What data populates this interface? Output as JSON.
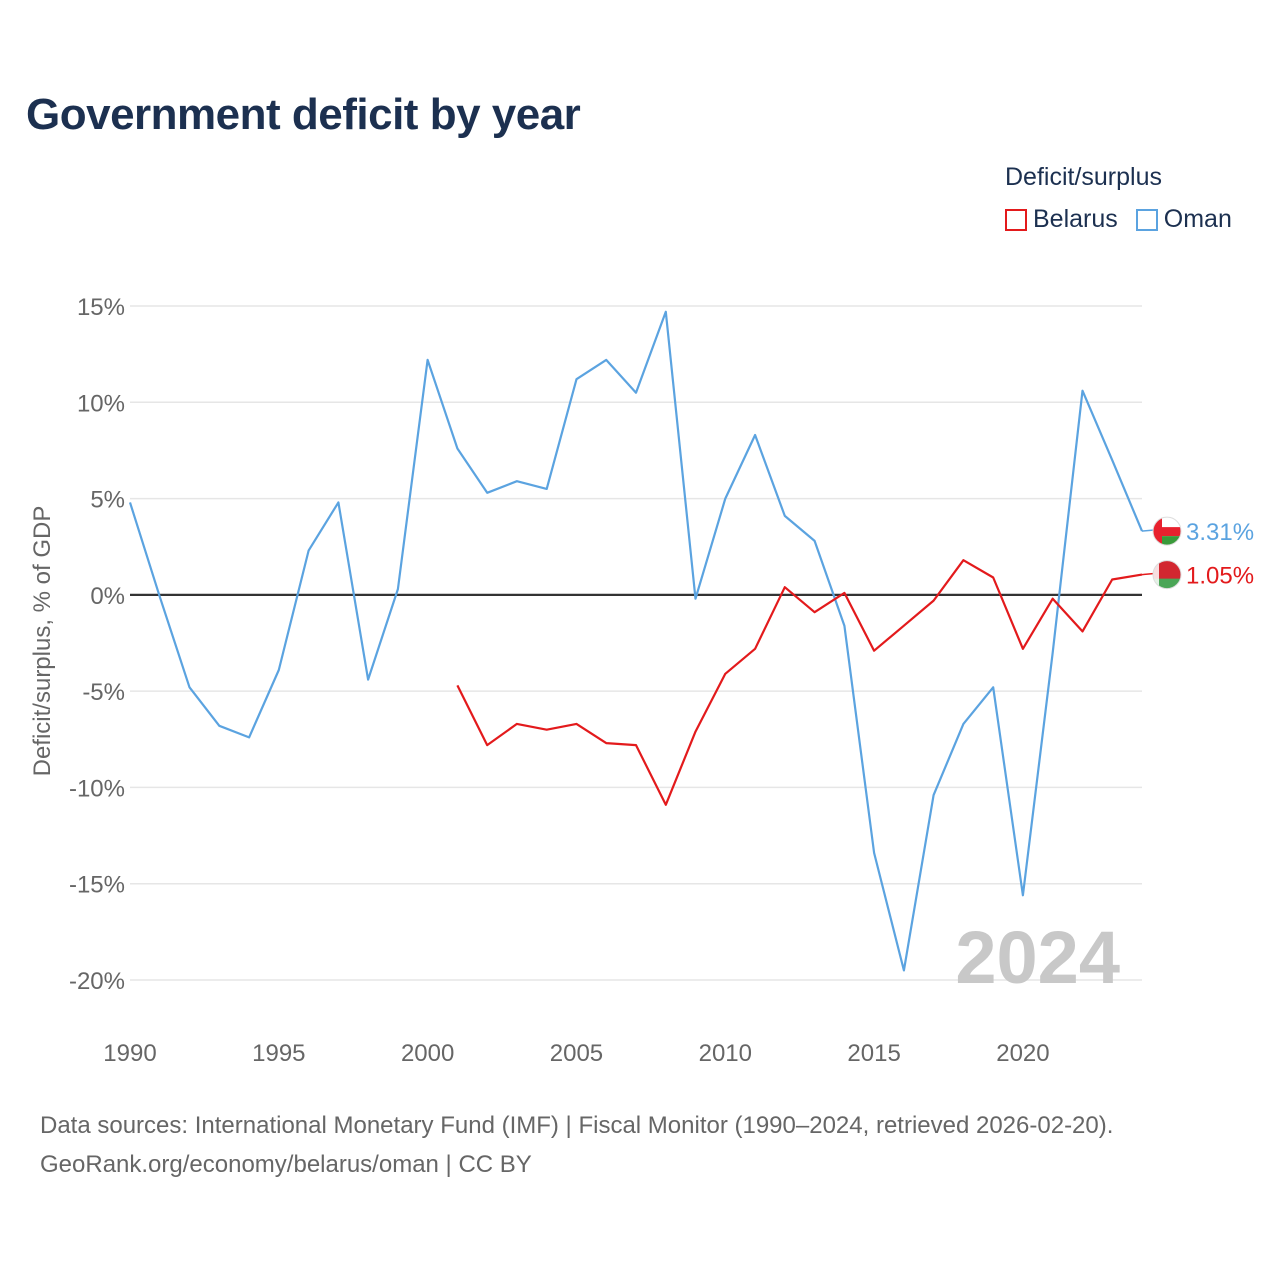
{
  "title": "Government deficit by year",
  "legend": {
    "title": "Deficit/surplus",
    "items": [
      {
        "label": "Belarus",
        "color": "#e31a1c"
      },
      {
        "label": "Oman",
        "color": "#5ba3e0"
      }
    ]
  },
  "footer": {
    "line1": "Data sources: International Monetary Fund (IMF) | Fiscal Monitor (1990–2024, retrieved 2026-02-20).",
    "line2": "GeoRank.org/economy/belarus/oman | CC BY"
  },
  "chart_data": {
    "type": "line",
    "title": "Government deficit by year",
    "xlabel": "",
    "ylabel": "Deficit/surplus, % of GDP",
    "xlim": [
      1990,
      2024
    ],
    "ylim": [
      -20,
      15
    ],
    "xticks": [
      1990,
      1995,
      2000,
      2005,
      2010,
      2015,
      2020
    ],
    "yticks": [
      15,
      10,
      5,
      0,
      -5,
      -10,
      -15,
      -20
    ],
    "ytick_labels": [
      "15%",
      "10%",
      "5%",
      "0%",
      "-5%",
      "-10%",
      "-15%",
      "-20%"
    ],
    "watermark": "2024",
    "series": [
      {
        "name": "Oman",
        "color": "#5ba3e0",
        "end_label": "3.31%",
        "x": [
          1990,
          1991,
          1992,
          1993,
          1994,
          1995,
          1996,
          1997,
          1998,
          1999,
          2000,
          2001,
          2002,
          2003,
          2004,
          2005,
          2006,
          2007,
          2008,
          2009,
          2010,
          2011,
          2012,
          2013,
          2014,
          2015,
          2016,
          2017,
          2018,
          2019,
          2020,
          2021,
          2022,
          2023,
          2024
        ],
        "values": [
          4.8,
          -0.1,
          -4.8,
          -6.8,
          -7.4,
          -3.9,
          2.3,
          4.8,
          -4.4,
          0.3,
          12.2,
          7.6,
          5.3,
          5.9,
          5.5,
          11.2,
          12.2,
          10.5,
          14.7,
          -0.2,
          5.0,
          8.3,
          4.1,
          2.8,
          -1.6,
          -13.4,
          -19.5,
          -10.4,
          -6.7,
          -4.8,
          -15.6,
          -3.0,
          10.6,
          7.0,
          3.31
        ]
      },
      {
        "name": "Belarus",
        "color": "#e31a1c",
        "end_label": "1.05%",
        "x": [
          2001,
          2002,
          2003,
          2004,
          2005,
          2006,
          2007,
          2008,
          2009,
          2010,
          2011,
          2012,
          2013,
          2014,
          2015,
          2016,
          2017,
          2018,
          2019,
          2020,
          2021,
          2022,
          2023,
          2024
        ],
        "values": [
          -4.7,
          -7.8,
          -6.7,
          -7.0,
          -6.7,
          -7.7,
          -7.8,
          -10.9,
          -7.1,
          -4.1,
          -2.8,
          0.4,
          -0.9,
          0.1,
          -2.9,
          -1.6,
          -0.3,
          1.8,
          0.9,
          -2.8,
          -0.2,
          -1.9,
          0.8,
          1.05
        ]
      }
    ]
  }
}
